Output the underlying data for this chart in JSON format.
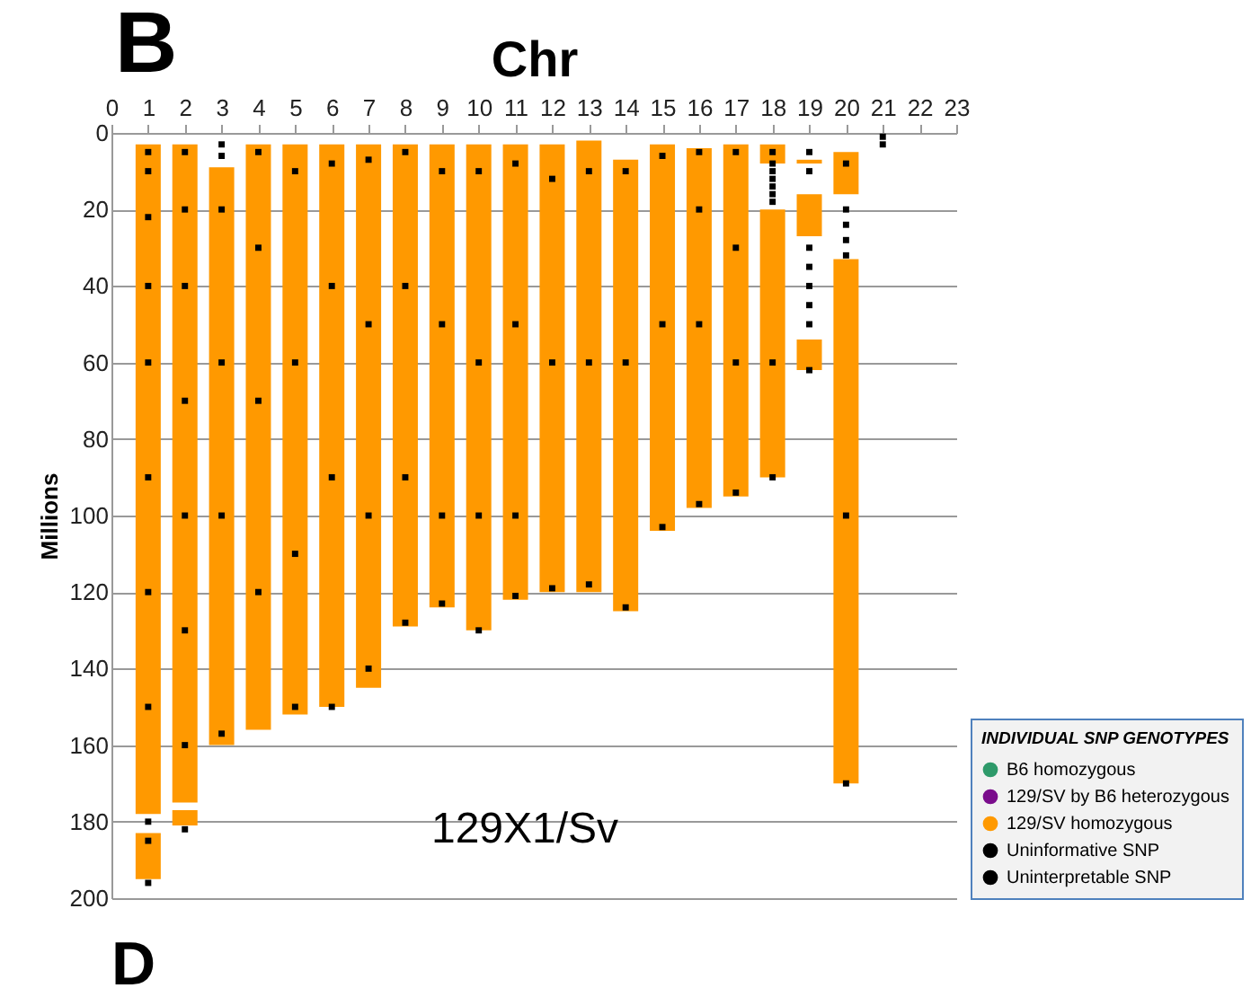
{
  "chart_data": {
    "type": "bar",
    "xlabel": "Chr",
    "ylabel": "Millions",
    "legend_title": "INDIVIDUAL SNP GENOTYPES",
    "legend": "bottom right",
    "grid": "y",
    "xlim": [
      0,
      23
    ],
    "xticks": [
      0,
      1,
      2,
      3,
      4,
      5,
      6,
      7,
      8,
      9,
      10,
      11,
      12,
      13,
      14,
      15,
      16,
      17,
      18,
      19,
      20,
      21,
      22,
      23
    ],
    "ylim": [
      200,
      0
    ],
    "yticks": [
      0,
      20,
      40,
      60,
      80,
      100,
      120,
      140,
      160,
      180,
      200
    ],
    "annotations": [
      "B",
      "129X1/Sv",
      "D"
    ],
    "series": [
      {
        "name": "B6 homozygous",
        "color": "#2e9a6a"
      },
      {
        "name": "129/SV by B6 heterozygous",
        "color": "#7a0d8c"
      },
      {
        "name": "129/SV homozygous",
        "color": "#ff9900",
        "x": [
          1,
          2,
          3,
          4,
          5,
          6,
          7,
          8,
          9,
          10,
          11,
          12,
          13,
          14,
          15,
          16,
          17,
          18,
          19,
          20
        ],
        "base": [
          3,
          3,
          9,
          3,
          3,
          3,
          3,
          3,
          3,
          3,
          3,
          3,
          2,
          7,
          3,
          4,
          3,
          20,
          16,
          33
        ],
        "values": [
          175,
          172,
          151,
          153,
          149,
          147,
          142,
          126,
          121,
          127,
          119,
          117,
          118,
          118,
          101,
          94,
          92,
          70,
          11,
          137
        ]
      },
      {
        "color": "#ff9900",
        "x": [
          1,
          2,
          18,
          19
        ],
        "base": [
          183,
          177,
          3,
          7
        ],
        "values": [
          12,
          4,
          5,
          1
        ]
      },
      {
        "color": "#ff9900",
        "x": [
          19,
          20
        ],
        "base": [
          54,
          5
        ],
        "values": [
          8,
          11
        ]
      },
      {
        "name": "Uninformative SNP",
        "color": "#000000",
        "type": "scatter",
        "marker": "square",
        "x": [
          1,
          1,
          1,
          1,
          1,
          1,
          1,
          1,
          1,
          1,
          1,
          2,
          2,
          2,
          2,
          2,
          2,
          2,
          2,
          3,
          3,
          3,
          3,
          3,
          3,
          4,
          4,
          4,
          4,
          5,
          5,
          5,
          5,
          6,
          6,
          6,
          6,
          7,
          7,
          7,
          7,
          8,
          8,
          8,
          8,
          9,
          9,
          9,
          9,
          10,
          10,
          10,
          10,
          11,
          11,
          11,
          11,
          12,
          12,
          12,
          13,
          13,
          13,
          14,
          14,
          14,
          15,
          15,
          15,
          16,
          16,
          16,
          16,
          17,
          17,
          17,
          17,
          18,
          18,
          18,
          18,
          18,
          18,
          18,
          18,
          18,
          19,
          19,
          19,
          19,
          19,
          19,
          19,
          19,
          20,
          20,
          20,
          20,
          20,
          20,
          20,
          21,
          21
        ],
        "values": [
          5,
          10,
          22,
          40,
          60,
          90,
          120,
          150,
          180,
          185,
          196,
          5,
          20,
          40,
          70,
          100,
          130,
          160,
          182,
          3,
          6,
          20,
          60,
          100,
          157,
          5,
          30,
          70,
          120,
          10,
          60,
          110,
          150,
          8,
          40,
          90,
          150,
          7,
          50,
          100,
          140,
          5,
          40,
          90,
          128,
          10,
          50,
          100,
          123,
          10,
          60,
          100,
          130,
          8,
          50,
          100,
          121,
          12,
          60,
          119,
          10,
          60,
          118,
          10,
          60,
          124,
          6,
          50,
          103,
          5,
          20,
          50,
          97,
          5,
          30,
          60,
          94,
          5,
          8,
          10,
          12,
          14,
          16,
          18,
          60,
          90,
          5,
          10,
          30,
          35,
          40,
          45,
          50,
          62,
          8,
          20,
          24,
          28,
          32,
          100,
          170,
          1,
          3
        ]
      },
      {
        "name": "Uninterpretable SNP",
        "color": "#000000",
        "type": "scatter",
        "marker": "cross"
      }
    ]
  }
}
